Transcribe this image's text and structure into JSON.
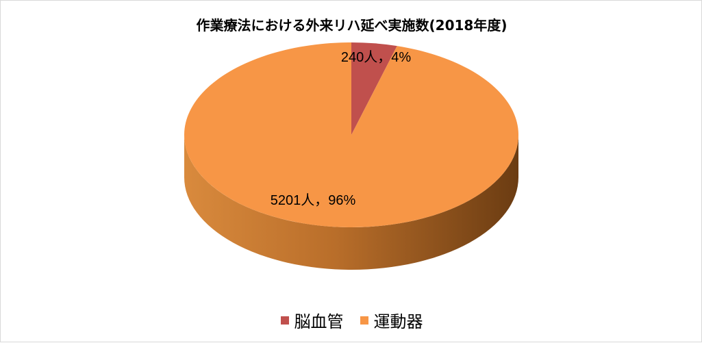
{
  "chart_data": {
    "type": "pie",
    "title": "作業療法における外来リハ延べ実施数(2018年度)",
    "slices": [
      {
        "name": "脳血管",
        "value": 240,
        "percent": 4,
        "label": "240人，4%",
        "color": "#c0504d"
      },
      {
        "name": "運動器",
        "value": 5201,
        "percent": 96,
        "label": "5201人，96%",
        "color": "#f79646"
      }
    ],
    "legend": {
      "position": "bottom",
      "entries": [
        "脳血管",
        "運動器"
      ]
    },
    "style": "3d"
  }
}
